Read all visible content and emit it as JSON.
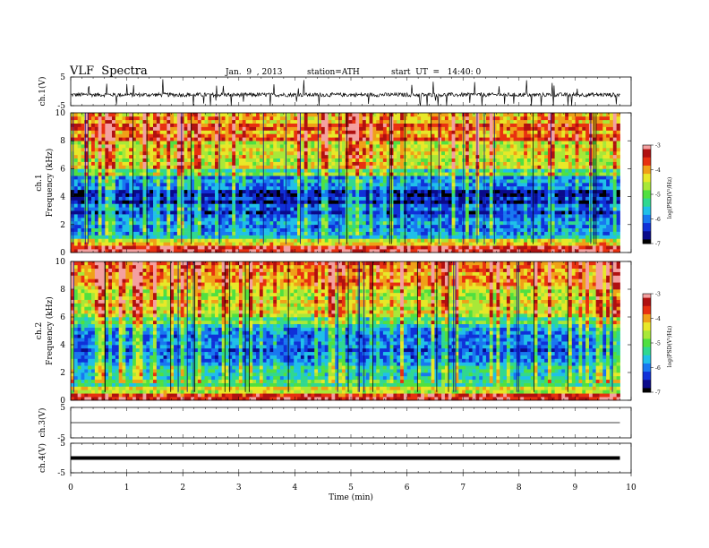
{
  "header": {
    "title": "VLF  Spectra",
    "date": "Jan.  9  , 2013",
    "station": "station=ATH",
    "start": "start  UT  =   14:40: 0"
  },
  "colors": {
    "background": "#ffffff",
    "axes": "#000000",
    "colormap": [
      "#000000",
      "#0a0a8a",
      "#1030d8",
      "#1878f0",
      "#20c0e8",
      "#30d890",
      "#50e040",
      "#a8e838",
      "#e8e828",
      "#f0a018",
      "#e83010",
      "#b01010",
      "#f4a0a0",
      "#ffffff"
    ]
  },
  "chart_data": [
    {
      "type": "line",
      "panel": "ch1-waveform",
      "ylabel": "ch.1(V)",
      "ylim": [
        -5,
        5
      ],
      "yticks": [
        "5",
        "-5"
      ],
      "x_range_min": [
        0,
        9.8
      ],
      "baseline_v": -1.2,
      "description_values": "noisy broadband waveform with impulsive sferic spikes"
    },
    {
      "type": "heatmap",
      "panel": "ch1-spectrogram",
      "ylabel": "Frequency  (kHz)",
      "channel_label": "ch.1",
      "ylim": [
        0,
        10
      ],
      "yticks": [
        "0",
        "2",
        "4",
        "6",
        "8",
        "10"
      ],
      "colorbar": {
        "label": "log(PSD(V²/Hz)",
        "range": [
          -7,
          -3
        ],
        "ticks": [
          "-3",
          "-4",
          "-5",
          "-6",
          "-7"
        ]
      },
      "frequency_bands_kHz": [
        0,
        0.5,
        1,
        2,
        2.5,
        3.5,
        4.5,
        5.5,
        6,
        8,
        10
      ],
      "band_log_psd": [
        -3.5,
        -4.5,
        -5.8,
        -6.0,
        -6.3,
        -6.6,
        -6.0,
        -5.2,
        -4.6,
        -4.0
      ]
    },
    {
      "type": "heatmap",
      "panel": "ch2-spectrogram",
      "ylabel": "Frequency  (kHz)",
      "channel_label": "ch.2",
      "ylim": [
        0,
        10
      ],
      "yticks": [
        "0",
        "2",
        "4",
        "6",
        "8",
        "10"
      ],
      "colorbar": {
        "label": "log(PSD(V²/Hz)",
        "range": [
          -7,
          -3
        ],
        "ticks": [
          "-3",
          "-4",
          "-5",
          "-6",
          "-7"
        ]
      },
      "frequency_bands_kHz": [
        0,
        0.5,
        1,
        2,
        2.5,
        3.5,
        4.5,
        5.5,
        6,
        8,
        10
      ],
      "band_log_psd": [
        -3.6,
        -4.6,
        -5.4,
        -5.6,
        -5.9,
        -6.2,
        -5.9,
        -5.2,
        -4.6,
        -4.0
      ]
    },
    {
      "type": "line",
      "panel": "ch3-waveform",
      "ylabel": "ch.3(V)",
      "ylim": [
        -5,
        5
      ],
      "yticks": [
        "5",
        "-5"
      ],
      "baseline_v": 0.0
    },
    {
      "type": "line",
      "panel": "ch4-waveform",
      "ylabel": "ch.4(V)",
      "ylim": [
        -5,
        5
      ],
      "yticks": [
        "5",
        "-5"
      ],
      "baseline_v": 0.0
    },
    {
      "type": "axis",
      "xlabel": "Time  (min)",
      "xlim": [
        0,
        10
      ],
      "xticks": [
        "0",
        "1",
        "2",
        "3",
        "4",
        "5",
        "6",
        "7",
        "8",
        "9",
        "10"
      ]
    }
  ]
}
